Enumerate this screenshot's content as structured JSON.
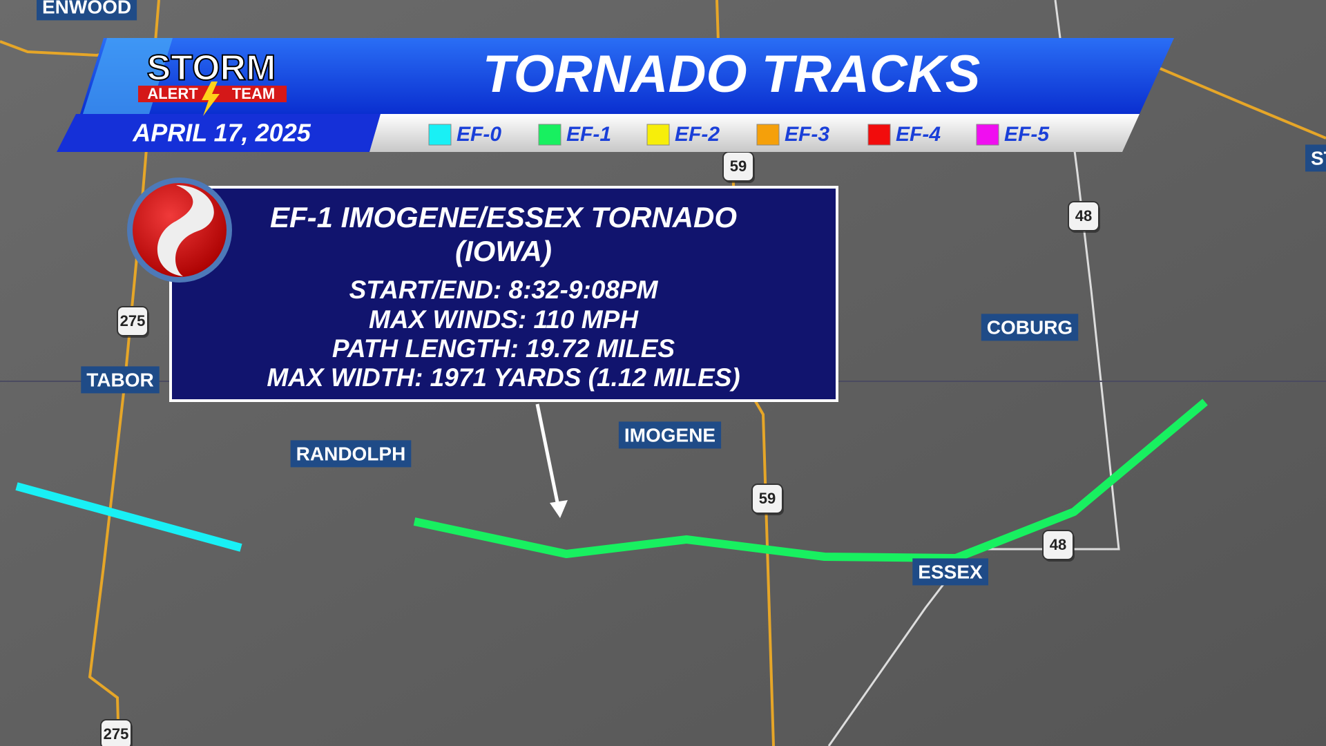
{
  "header": {
    "logo": {
      "top": "STORM",
      "left": "ALERT",
      "right": "TEAM"
    },
    "title": "TORNADO TRACKS",
    "date": "APRIL 17, 2025"
  },
  "legend": [
    {
      "label": "EF-0",
      "color": "#19f0f5"
    },
    {
      "label": "EF-1",
      "color": "#18f060"
    },
    {
      "label": "EF-2",
      "color": "#f7ee0a"
    },
    {
      "label": "EF-3",
      "color": "#f5a00a"
    },
    {
      "label": "EF-4",
      "color": "#f20c0c"
    },
    {
      "label": "EF-5",
      "color": "#f00ef0"
    }
  ],
  "info": {
    "title": [
      "EF-1 IMOGENE/ESSEX TORNADO",
      "(IOWA)"
    ],
    "details": [
      "START/END: 8:32-9:08PM",
      "MAX WINDS: 110 MPH",
      "PATH LENGTH: 19.72 MILES",
      "MAX WIDTH: 1971 YARDS (1.12 MILES)"
    ]
  },
  "places": [
    "ENWOOD",
    "ST",
    "TABOR",
    "RANDOLPH",
    "IMOGENE",
    "COBURG",
    "ESSEX"
  ],
  "shields": [
    "275",
    "59",
    "48",
    "59",
    "48",
    "275"
  ]
}
